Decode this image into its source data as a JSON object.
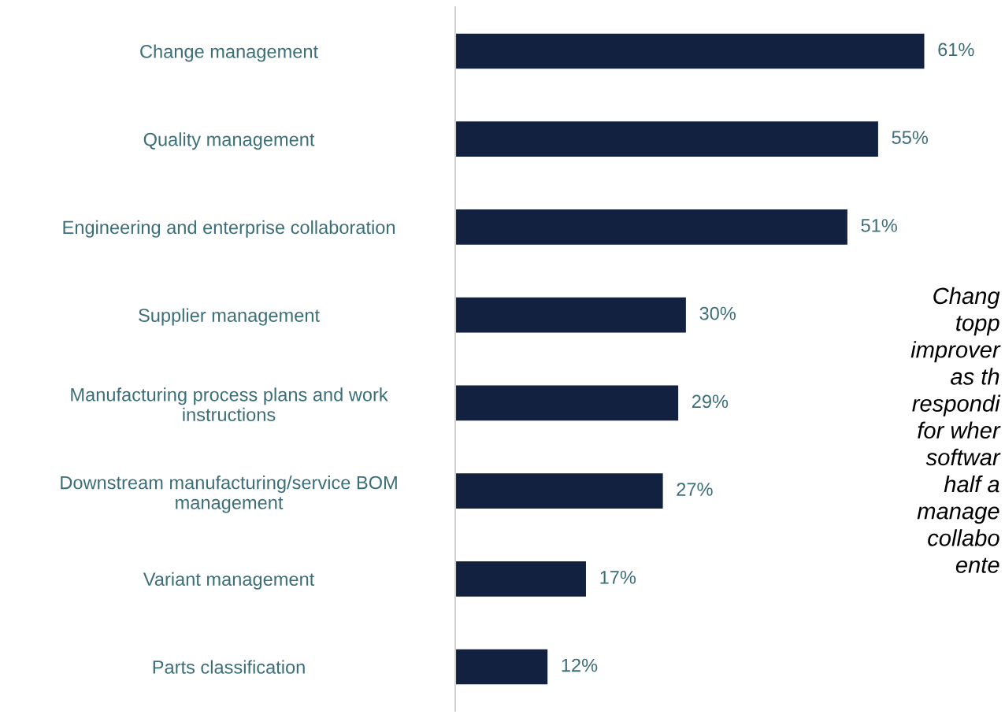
{
  "chart_data": {
    "type": "bar",
    "orientation": "horizontal",
    "categories": [
      "Change management",
      "Quality management",
      "Engineering and enterprise collaboration",
      "Supplier management",
      "Manufacturing process plans and work\ninstructions",
      "Downstream manufacturing/service BOM\nmanagement",
      "Variant management",
      "Parts classification"
    ],
    "values": [
      61,
      55,
      51,
      30,
      29,
      27,
      17,
      12
    ],
    "value_labels": [
      "61%",
      "55%",
      "51%",
      "30%",
      "29%",
      "27%",
      "17%",
      "12%"
    ],
    "color": "#12213f",
    "tick_labels": "y",
    "grid": false,
    "legend": false,
    "annotations": [
      "Chang\ntopp\nimprover\nas th\nrespondi\nfor wher\nsoftwar\nhalf a\nmanage\ncollabo\nente"
    ]
  }
}
